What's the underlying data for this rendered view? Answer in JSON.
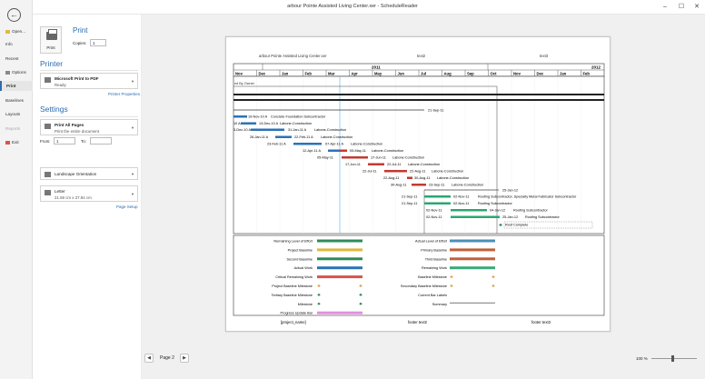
{
  "window": {
    "title": "arbour Pointe Assisted Living Center.xer - ScheduleReader"
  },
  "nav": {
    "items": [
      {
        "label": "Open..."
      },
      {
        "label": "Info"
      },
      {
        "label": "Recent"
      },
      {
        "label": "Options"
      },
      {
        "label": "Print"
      },
      {
        "label": "Baselines"
      },
      {
        "label": "Layouts"
      },
      {
        "label": "Reports"
      },
      {
        "label": "Exit"
      }
    ]
  },
  "print": {
    "heading": "Print",
    "button_label": "Print",
    "copies_label": "Copies:",
    "copies_value": "1"
  },
  "printer": {
    "heading": "Printer",
    "name": "Microsoft Print to PDF",
    "status": "Ready",
    "properties_link": "Printer Properties"
  },
  "settings": {
    "heading": "Settings",
    "pages_title": "Print All Pages",
    "pages_desc": "Print the entire document",
    "from_label": "From:",
    "from_value": "1",
    "to_label": "To:",
    "orientation": "Landscape Orientation",
    "paper_title": "Letter",
    "paper_size": "21.59 cm x 27.94 cm",
    "page_setup_link": "Page Setup"
  },
  "footer_bar": {
    "page_label": "Page 2",
    "zoom": "100 %"
  },
  "sheet": {
    "header": {
      "project": "arbour Pointe Assisted Living Center.xer",
      "center": "text2",
      "right": "text3"
    },
    "timeline": {
      "years": [
        {
          "label": "2011"
        },
        {
          "label": "2012"
        }
      ],
      "months": [
        "Nov",
        "Dec",
        "Jan",
        "Feb",
        "Mar",
        "Apr",
        "May",
        "Jun",
        "Jul",
        "Aug",
        "Sep",
        "Oct",
        "Nov",
        "Dec",
        "Jan",
        "Feb"
      ]
    },
    "group_label": "ed By Owner",
    "bars": [
      {
        "date": "21-Sep-11",
        "label": ""
      },
      {
        "date": "19-Nov-10 A",
        "label": "Concrete Foundation Subcontractor"
      },
      {
        "date": "13-Dec-10 A",
        "label": "Labone-Construction",
        "start": "10 A"
      },
      {
        "date": "31-Jan-11 A",
        "label": "Labone-Construction",
        "start": "3-Dec-10 A"
      },
      {
        "date": "22-Feb-11 A",
        "label": "Labone-Construction",
        "start": "26-Jan-11 A"
      },
      {
        "date": "07-Apr-11 A",
        "label": "Labone-Construction",
        "start": "23-Feb-11 A"
      },
      {
        "date": "05-May-11",
        "label": "Labone-Construction",
        "start": "12-Apr-11 A"
      },
      {
        "date": "17-Jun-11",
        "label": "Labone-Construction",
        "start": "05-May-11"
      },
      {
        "date": "22-Jul-11",
        "label": "Labone-Construction",
        "start": "17-Jun-11"
      },
      {
        "date": "22-Aug-11",
        "label": "Labone-Construction",
        "start": "22-Jul-11"
      },
      {
        "date": "30-Aug-11",
        "label": "Labone-Construction",
        "start": "22-Aug-11"
      },
      {
        "date": "23-Sep-11",
        "label": "Labone-Construction",
        "start": "30-Aug-11"
      },
      {
        "date": "25-Jan-12",
        "label": ""
      },
      {
        "date": "02-Nov-11",
        "label": "Roofing Subcontractor, Specialty Metal Fabricator Subcontractor",
        "start": "21-Sep-11"
      },
      {
        "date": "02-Nov-11",
        "label": "Roofing Subcontractor",
        "start": "21-Sep-11"
      },
      {
        "date": "04-Jan-12",
        "label": "Roofing Subcontractor",
        "start": "02-Nov-11"
      },
      {
        "date": "25-Jan-12",
        "label": "Roofing Subcontractor",
        "start": "02-Nov-11"
      },
      {
        "date": "",
        "label": "Roof Complete"
      }
    ],
    "legend_left": [
      {
        "label": "Remaining Level of Effort",
        "color": "#2e8b57"
      },
      {
        "label": "Project Baseline",
        "color": "#e0b93a"
      },
      {
        "label": "Second Baseline",
        "color": "#2e8b57"
      },
      {
        "label": "Actual Work",
        "color": "#2a73b8"
      },
      {
        "label": "Critical Remaining Work",
        "color": "#d9534f"
      },
      {
        "label": "Project Baseline Milestone",
        "color": "#e0a040"
      },
      {
        "label": "Tertiary Baseline Milestone",
        "color": "#2e8b57"
      },
      {
        "label": "Milestone",
        "color": "#2e8b57"
      },
      {
        "label": "Progress Update Bar",
        "color": "#e58ee0"
      }
    ],
    "legend_right": [
      {
        "label": "Actual Level of Effort",
        "color": "#4a8fb8"
      },
      {
        "label": "Primary Baseline",
        "color": "#c0603a"
      },
      {
        "label": "Third Baseline",
        "color": "#c0603a"
      },
      {
        "label": "Remaining Work",
        "color": "#3aa878"
      },
      {
        "label": "Baseline Milestone",
        "color": "#e0a040"
      },
      {
        "label": "Secondary Baseline Milestone",
        "color": "#e0a040"
      },
      {
        "label": "Current Bar Labels",
        "color": ""
      },
      {
        "label": "Summary",
        "color": "#777777"
      }
    ],
    "footer": {
      "left": "[project_name]",
      "center": "footer text2",
      "right": "footer text3"
    }
  }
}
